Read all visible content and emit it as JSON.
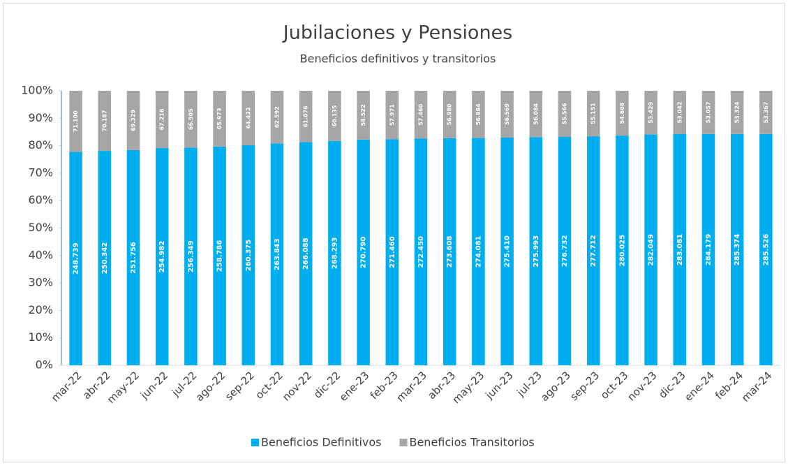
{
  "chart_data": {
    "type": "bar",
    "stacking": "percent",
    "title": "Jubilaciones y Pensiones",
    "subtitle": "Beneficios definitivos y transitorios",
    "categories": [
      "mar-22",
      "abr-22",
      "may-22",
      "jun-22",
      "jul-22",
      "ago-22",
      "sep-22",
      "oct-22",
      "nov-22",
      "dic-22",
      "ene-23",
      "feb-23",
      "mar-23",
      "abr-23",
      "may-23",
      "jun-23",
      "jul-23",
      "ago-23",
      "sep-23",
      "oct-23",
      "nov-23",
      "dic-23",
      "ene-24",
      "feb-24",
      "mar-24"
    ],
    "series": [
      {
        "name": "Beneficios Definitivos",
        "color": "#00aeef",
        "values": [
          248739,
          250342,
          251756,
          254982,
          256349,
          258786,
          260375,
          263843,
          266088,
          268293,
          270790,
          271460,
          272450,
          273608,
          274081,
          275410,
          275993,
          276732,
          277712,
          280025,
          282049,
          283081,
          284179,
          285374,
          285526
        ],
        "value_labels": [
          "248.739",
          "250.342",
          "251.756",
          "254.982",
          "256.349",
          "258.786",
          "260.375",
          "263.843",
          "266.088",
          "268.293",
          "270.790",
          "271.460",
          "272.450",
          "273.608",
          "274.081",
          "275.410",
          "275.993",
          "276.732",
          "277.712",
          "280.025",
          "282.049",
          "283.081",
          "284.179",
          "285.374",
          "285.526"
        ]
      },
      {
        "name": "Beneficios Transitorios",
        "color": "#a6a6a6",
        "values": [
          71100,
          70187,
          69329,
          67216,
          66905,
          65973,
          64433,
          62592,
          61076,
          60135,
          58522,
          57971,
          57460,
          56980,
          56884,
          56569,
          56084,
          55566,
          55151,
          54608,
          53429,
          53042,
          53057,
          53324,
          53367
        ],
        "value_labels": [
          "71.100",
          "70.187",
          "69.329",
          "67.216",
          "66.905",
          "65.973",
          "64.433",
          "62.592",
          "61.076",
          "60.135",
          "58.522",
          "57.971",
          "57.460",
          "56.980",
          "56.884",
          "56.569",
          "56.084",
          "55.566",
          "55.151",
          "54.608",
          "53.429",
          "53.042",
          "53.057",
          "53.324",
          "53.367"
        ]
      }
    ],
    "ylim": [
      0,
      100
    ],
    "yticks": [
      {
        "value": 0,
        "label": "0%"
      },
      {
        "value": 10,
        "label": "10%"
      },
      {
        "value": 20,
        "label": "20%"
      },
      {
        "value": 30,
        "label": "30%"
      },
      {
        "value": 40,
        "label": "40%"
      },
      {
        "value": 50,
        "label": "50%"
      },
      {
        "value": 60,
        "label": "60%"
      },
      {
        "value": 70,
        "label": "70%"
      },
      {
        "value": 80,
        "label": "80%"
      },
      {
        "value": 90,
        "label": "90%"
      },
      {
        "value": 100,
        "label": "100%"
      }
    ],
    "legend": "bottom"
  }
}
